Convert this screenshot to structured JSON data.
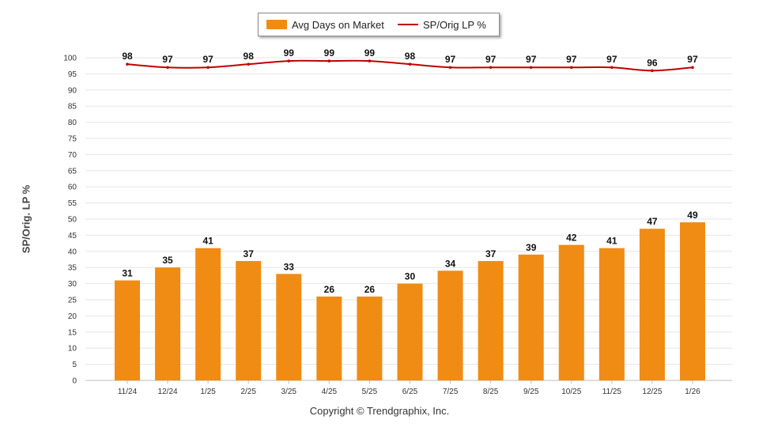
{
  "chart_data": {
    "type": "bar+line",
    "categories": [
      "11/24",
      "12/24",
      "1/25",
      "2/25",
      "3/25",
      "4/25",
      "5/25",
      "6/25",
      "7/25",
      "8/25",
      "9/25",
      "10/25",
      "11/25",
      "12/25",
      "1/26"
    ],
    "series": [
      {
        "name": "Avg Days on Market",
        "kind": "bar",
        "values": [
          31,
          35,
          41,
          37,
          33,
          26,
          26,
          30,
          34,
          37,
          39,
          42,
          41,
          47,
          49
        ]
      },
      {
        "name": "SP/Orig LP %",
        "kind": "line",
        "values": [
          98,
          97,
          97,
          98,
          99,
          99,
          99,
          98,
          97,
          97,
          97,
          97,
          97,
          96,
          97
        ]
      }
    ],
    "ylabel": "SP/Orig. LP %",
    "ylim": [
      0,
      100
    ],
    "yticks": [
      0,
      5,
      10,
      15,
      20,
      25,
      30,
      35,
      40,
      45,
      50,
      55,
      60,
      65,
      70,
      75,
      80,
      85,
      90,
      95,
      100
    ],
    "grid": true,
    "legend_position": "top-center"
  },
  "legend": {
    "bar_label": "Avg Days on Market",
    "line_label": "SP/Orig LP %"
  },
  "footer": {
    "copyright": "Copyright © Trendgraphix, Inc."
  },
  "colors": {
    "bar": "#f08c14",
    "line": "#c00000",
    "grid": "#e6e6e6",
    "axis_text": "#333333"
  }
}
